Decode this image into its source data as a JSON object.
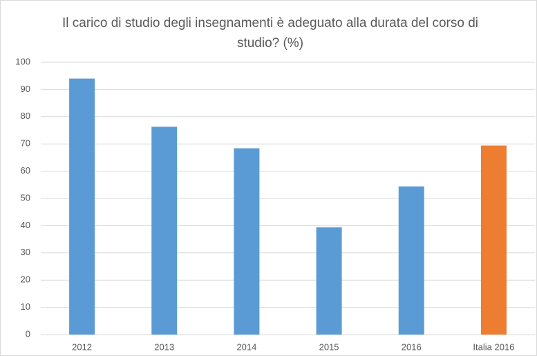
{
  "chart_data": {
    "type": "bar",
    "title": "Il carico di studio degli insegnamenti è adeguato alla durata del corso di studio? (%)",
    "categories": [
      "2012",
      "2013",
      "2014",
      "2015",
      "2016",
      "Italia 2016"
    ],
    "values": [
      94,
      76.3,
      68.4,
      39.4,
      54.4,
      69.4
    ],
    "colors": [
      "#5b9bd5",
      "#5b9bd5",
      "#5b9bd5",
      "#5b9bd5",
      "#5b9bd5",
      "#ed7d31"
    ],
    "ylim": [
      0,
      100
    ],
    "yticks": [
      0,
      10,
      20,
      30,
      40,
      50,
      60,
      70,
      80,
      90,
      100
    ],
    "grid": true
  }
}
